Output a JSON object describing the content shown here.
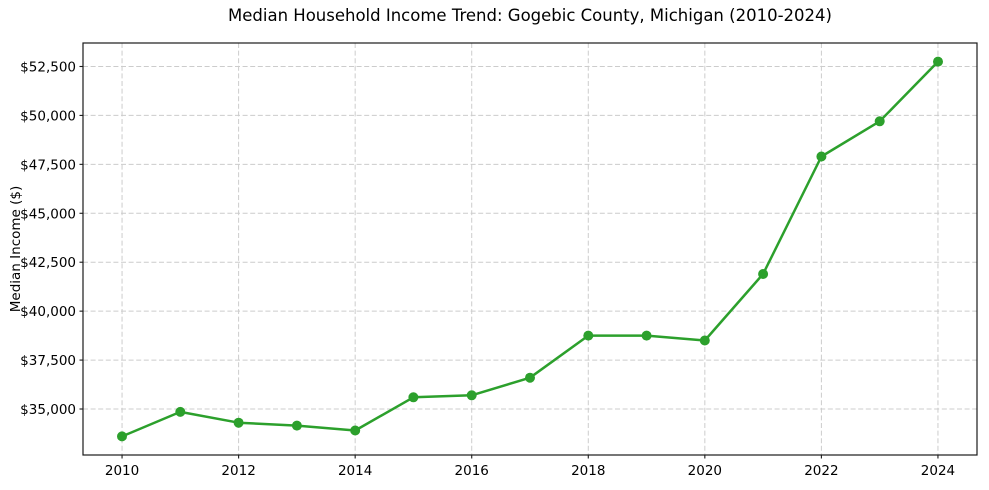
{
  "chart_data": {
    "type": "line",
    "title": "Median Household Income Trend: Gogebic County, Michigan (2010-2024)",
    "xlabel": "",
    "ylabel": "Median Income ($)",
    "x": [
      2010,
      2011,
      2012,
      2013,
      2014,
      2015,
      2016,
      2017,
      2018,
      2019,
      2020,
      2021,
      2022,
      2023,
      2024
    ],
    "series": [
      {
        "name": "Median household income",
        "values": [
          33600,
          34850,
          34300,
          34150,
          33900,
          35600,
          35700,
          36600,
          38750,
          38750,
          38500,
          41900,
          47900,
          49700,
          52750
        ]
      }
    ],
    "xlim": [
      2009.33,
      2024.67
    ],
    "ylim": [
      32650,
      53700
    ],
    "x_ticks": [
      {
        "v": 2010,
        "label": "2010"
      },
      {
        "v": 2012,
        "label": "2012"
      },
      {
        "v": 2014,
        "label": "2014"
      },
      {
        "v": 2016,
        "label": "2016"
      },
      {
        "v": 2018,
        "label": "2018"
      },
      {
        "v": 2020,
        "label": "2020"
      },
      {
        "v": 2022,
        "label": "2022"
      },
      {
        "v": 2024,
        "label": "2024"
      }
    ],
    "y_ticks": [
      {
        "v": 35000,
        "label": "$35,000"
      },
      {
        "v": 37500,
        "label": "$37,500"
      },
      {
        "v": 40000,
        "label": "$40,000"
      },
      {
        "v": 42500,
        "label": "$42,500"
      },
      {
        "v": 45000,
        "label": "$45,000"
      },
      {
        "v": 47500,
        "label": "$47,500"
      },
      {
        "v": 50000,
        "label": "$50,000"
      },
      {
        "v": 52500,
        "label": "$52,500"
      }
    ],
    "grid": true,
    "grid_style": "dashed",
    "legend": "none",
    "marker": "circle",
    "colors": {
      "line": "#2ca02c",
      "marker": "#2ca02c",
      "grid": "#cccccc",
      "spine": "#1a1a1a",
      "text": "#000000"
    }
  }
}
